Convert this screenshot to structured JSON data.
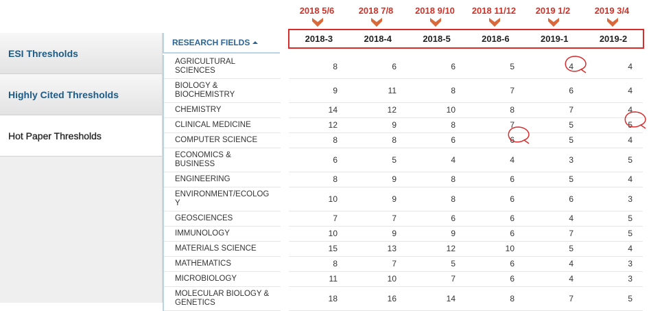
{
  "sidebar": {
    "tabs": [
      "ESI Thresholds",
      "Highly Cited Thresholds",
      "Hot Paper Thresholds"
    ]
  },
  "annotations": [
    "2018 5/6",
    "2018 7/8",
    "2018 9/10",
    "2018 11/12",
    "2019 1/2",
    "2019 3/4"
  ],
  "table": {
    "field_header": "RESEARCH FIELDS",
    "columns": [
      "2018-3",
      "2018-4",
      "2018-5",
      "2018-6",
      "2019-1",
      "2019-2"
    ],
    "rows": [
      {
        "field": "AGRICULTURAL SCIENCES",
        "values": [
          8,
          6,
          6,
          5,
          4,
          4
        ]
      },
      {
        "field": "BIOLOGY & BIOCHEMISTRY",
        "values": [
          9,
          11,
          8,
          7,
          6,
          4
        ]
      },
      {
        "field": "CHEMISTRY",
        "values": [
          14,
          12,
          10,
          8,
          7,
          4
        ]
      },
      {
        "field": "CLINICAL MEDICINE",
        "values": [
          12,
          9,
          8,
          7,
          5,
          5
        ]
      },
      {
        "field": "COMPUTER SCIENCE",
        "values": [
          8,
          8,
          6,
          6,
          5,
          4
        ]
      },
      {
        "field": "ECONOMICS & BUSINESS",
        "values": [
          6,
          5,
          4,
          4,
          3,
          5
        ]
      },
      {
        "field": "ENGINEERING",
        "values": [
          8,
          9,
          8,
          6,
          5,
          4
        ]
      },
      {
        "field": "ENVIRONMENT/ECOLOGY",
        "values": [
          10,
          9,
          8,
          6,
          6,
          3
        ]
      },
      {
        "field": "GEOSCIENCES",
        "values": [
          7,
          7,
          6,
          6,
          4,
          5
        ]
      },
      {
        "field": "IMMUNOLOGY",
        "values": [
          10,
          9,
          9,
          6,
          7,
          5
        ]
      },
      {
        "field": "MATERIALS SCIENCE",
        "values": [
          15,
          13,
          12,
          10,
          5,
          4
        ]
      },
      {
        "field": "MATHEMATICS",
        "values": [
          8,
          7,
          5,
          6,
          4,
          3
        ]
      },
      {
        "field": "MICROBIOLOGY",
        "values": [
          11,
          10,
          7,
          6,
          4,
          3
        ]
      },
      {
        "field": "MOLECULAR BIOLOGY & GENETICS",
        "values": [
          18,
          16,
          14,
          8,
          7,
          5
        ]
      }
    ]
  }
}
